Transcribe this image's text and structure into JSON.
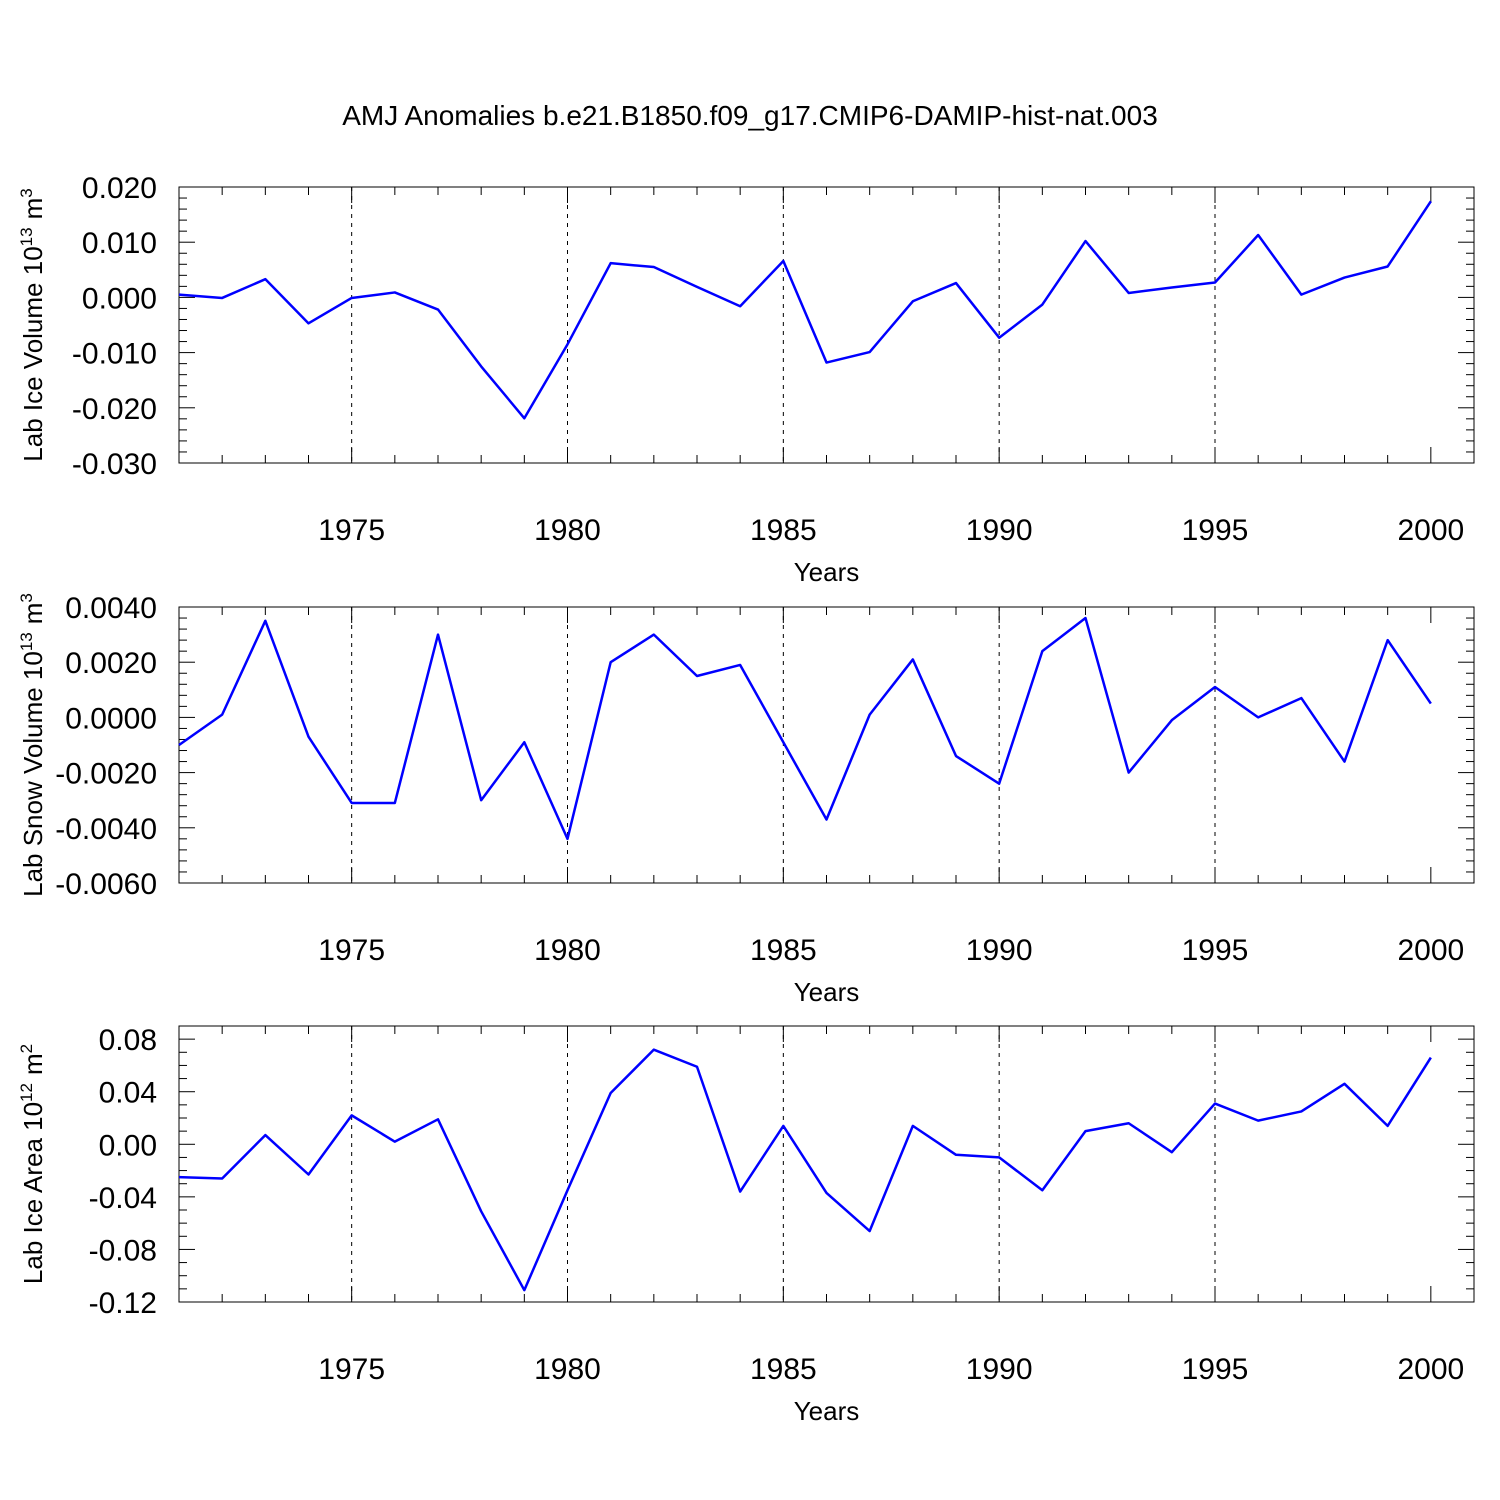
{
  "figure_title": "AMJ Anomalies b.e21.B1850.f09_g17.CMIP6-DAMIP-hist-nat.003",
  "line_color": "#0000ff",
  "chart_data": [
    {
      "type": "line",
      "title": "AMJ Anomalies b.e21.B1850.f09_g17.CMIP6-DAMIP-hist-nat.003",
      "xlabel": "Years",
      "ylabel": "Lab Ice Volume 10",
      "ylabel_exp": "13",
      "ylabel_unit": "m",
      "ylabel_unit_exp": "3",
      "xlim": [
        1971,
        2001
      ],
      "ylim": [
        -0.03,
        0.02
      ],
      "y_major_ticks": [
        0.02,
        0.01,
        0.0,
        -0.01,
        -0.02,
        -0.03
      ],
      "y_tick_labels": [
        "0.020",
        "0.010",
        "0.000",
        "-0.010",
        "-0.020",
        "-0.030"
      ],
      "y_minor_step": 0.002,
      "x_major_ticks": [
        1975,
        1980,
        1985,
        1990,
        1995,
        2000
      ],
      "x_tick_labels": [
        "1975",
        "1980",
        "1985",
        "1990",
        "1995",
        "2000"
      ],
      "x_minor_step": 1,
      "vgrid": [
        1975,
        1980,
        1985,
        1990,
        1995
      ],
      "x": [
        1971,
        1972,
        1973,
        1974,
        1975,
        1976,
        1977,
        1978,
        1979,
        1980,
        1981,
        1982,
        1983,
        1984,
        1985,
        1986,
        1987,
        1988,
        1989,
        1990,
        1991,
        1992,
        1993,
        1994,
        1995,
        1996,
        1997,
        1998,
        1999,
        2000
      ],
      "series": [
        {
          "name": "Lab Ice Volume",
          "values": [
            0.0005,
            -0.0001,
            0.0033,
            -0.0047,
            -0.0001,
            0.0009,
            -0.0022,
            -0.0125,
            -0.0219,
            -0.0085,
            0.0062,
            0.0055,
            0.0019,
            -0.0016,
            0.0066,
            -0.0118,
            -0.0099,
            -0.0007,
            0.0026,
            -0.0073,
            -0.0013,
            0.0102,
            0.0008,
            0.0018,
            0.0027,
            0.0113,
            0.0005,
            0.0036,
            0.0056,
            0.0174
          ]
        }
      ]
    },
    {
      "type": "line",
      "xlabel": "Years",
      "ylabel": "Lab Snow Volume 10",
      "ylabel_exp": "13",
      "ylabel_unit": "m",
      "ylabel_unit_exp": "3",
      "xlim": [
        1971,
        2001
      ],
      "ylim": [
        -0.006,
        0.004
      ],
      "y_major_ticks": [
        0.004,
        0.002,
        0.0,
        -0.002,
        -0.004,
        -0.006
      ],
      "y_tick_labels": [
        "0.0040",
        "0.0020",
        "0.0000",
        "-0.0020",
        "-0.0040",
        "-0.0060"
      ],
      "y_minor_step": 0.0004,
      "x_major_ticks": [
        1975,
        1980,
        1985,
        1990,
        1995,
        2000
      ],
      "x_tick_labels": [
        "1975",
        "1980",
        "1985",
        "1990",
        "1995",
        "2000"
      ],
      "x_minor_step": 1,
      "vgrid": [
        1975,
        1980,
        1985,
        1990,
        1995
      ],
      "x": [
        1971,
        1972,
        1973,
        1974,
        1975,
        1976,
        1977,
        1978,
        1979,
        1980,
        1981,
        1982,
        1983,
        1984,
        1985,
        1986,
        1987,
        1988,
        1989,
        1990,
        1991,
        1992,
        1993,
        1994,
        1995,
        1996,
        1997,
        1998,
        1999,
        2000
      ],
      "series": [
        {
          "name": "Lab Snow Volume",
          "values": [
            -0.001,
            0.0001,
            0.0035,
            -0.0007,
            -0.0031,
            -0.0031,
            0.003,
            -0.003,
            -0.0009,
            -0.0044,
            0.002,
            0.003,
            0.0015,
            0.0019,
            -0.0009,
            -0.0037,
            0.0001,
            0.0021,
            -0.0014,
            -0.0024,
            0.0024,
            0.0036,
            -0.002,
            -0.0001,
            0.0011,
            0.0,
            0.0007,
            -0.0016,
            0.0028,
            0.0005
          ]
        }
      ]
    },
    {
      "type": "line",
      "xlabel": "Years",
      "ylabel": "Lab Ice Area 10",
      "ylabel_exp": "12",
      "ylabel_unit": "m",
      "ylabel_unit_exp": "2",
      "xlim": [
        1971,
        2001
      ],
      "ylim": [
        -0.12,
        0.09
      ],
      "y_major_ticks": [
        0.08,
        0.04,
        0.0,
        -0.04,
        -0.08,
        -0.12
      ],
      "y_tick_labels": [
        "0.08",
        "0.04",
        "0.00",
        "-0.04",
        "-0.08",
        "-0.12"
      ],
      "y_minor_step": 0.01,
      "x_major_ticks": [
        1975,
        1980,
        1985,
        1990,
        1995,
        2000
      ],
      "x_tick_labels": [
        "1975",
        "1980",
        "1985",
        "1990",
        "1995",
        "2000"
      ],
      "x_minor_step": 1,
      "vgrid": [
        1975,
        1980,
        1985,
        1990,
        1995
      ],
      "x": [
        1971,
        1972,
        1973,
        1974,
        1975,
        1976,
        1977,
        1978,
        1979,
        1980,
        1981,
        1982,
        1983,
        1984,
        1985,
        1986,
        1987,
        1988,
        1989,
        1990,
        1991,
        1992,
        1993,
        1994,
        1995,
        1996,
        1997,
        1998,
        1999,
        2000
      ],
      "series": [
        {
          "name": "Lab Ice Area",
          "values": [
            -0.025,
            -0.026,
            0.007,
            -0.023,
            0.022,
            0.002,
            0.019,
            -0.051,
            -0.111,
            -0.035,
            0.039,
            0.072,
            0.059,
            -0.036,
            0.014,
            -0.037,
            -0.066,
            0.014,
            -0.008,
            -0.01,
            -0.035,
            0.01,
            0.016,
            -0.006,
            0.031,
            0.018,
            0.025,
            0.046,
            0.014,
            0.066
          ]
        }
      ]
    }
  ]
}
